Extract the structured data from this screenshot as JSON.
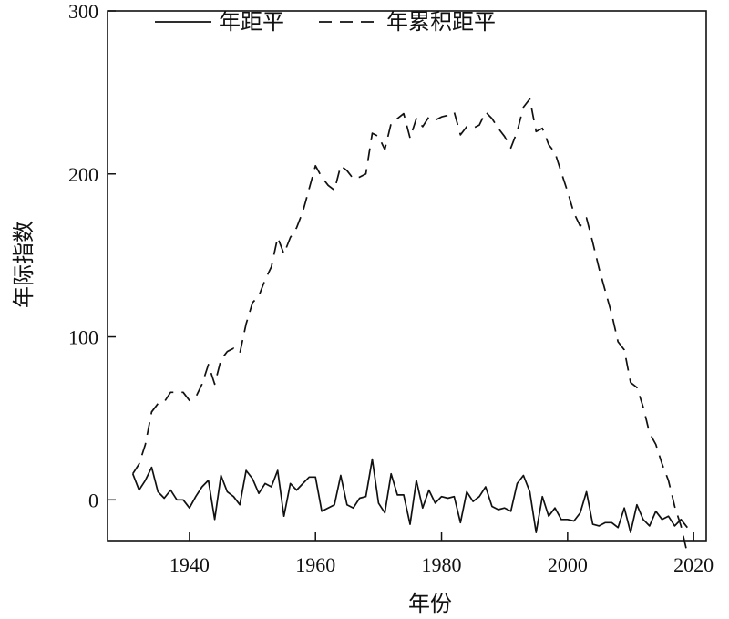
{
  "chart_data": {
    "type": "line",
    "title": "",
    "xlabel": "年份",
    "ylabel": "年际指数",
    "xlim": [
      1931,
      2019
    ],
    "ylim": [
      -25,
      300
    ],
    "xticks": [
      "1940",
      "1960",
      "1980",
      "2000",
      "2020"
    ],
    "yticks": [
      "0",
      "100",
      "200",
      "300"
    ],
    "legend_position": "top",
    "grid": false,
    "series": [
      {
        "name": "年距平",
        "style": "solid",
        "x": [
          1931,
          1932,
          1933,
          1934,
          1935,
          1936,
          1937,
          1938,
          1939,
          1940,
          1941,
          1942,
          1943,
          1944,
          1945,
          1946,
          1947,
          1948,
          1949,
          1950,
          1951,
          1952,
          1953,
          1954,
          1955,
          1956,
          1957,
          1958,
          1959,
          1960,
          1961,
          1962,
          1963,
          1964,
          1965,
          1966,
          1967,
          1968,
          1969,
          1970,
          1971,
          1972,
          1973,
          1974,
          1975,
          1976,
          1977,
          1978,
          1979,
          1980,
          1981,
          1982,
          1983,
          1984,
          1985,
          1986,
          1987,
          1988,
          1989,
          1990,
          1991,
          1992,
          1993,
          1994,
          1995,
          1996,
          1997,
          1998,
          1999,
          2000,
          2001,
          2002,
          2003,
          2004,
          2005,
          2006,
          2007,
          2008,
          2009,
          2010,
          2011,
          2012,
          2013,
          2014,
          2015,
          2016,
          2017,
          2018,
          2019
        ],
        "values": [
          16,
          6,
          12,
          20,
          5,
          1,
          6,
          0,
          0,
          -5,
          2,
          8,
          12,
          -12,
          15,
          5,
          2,
          -3,
          18,
          13,
          4,
          10,
          8,
          18,
          -10,
          10,
          6,
          10,
          14,
          14,
          -7,
          -5,
          -3,
          15,
          -3,
          -5,
          1,
          2,
          25,
          -2,
          -8,
          16,
          3,
          3,
          -15,
          12,
          -5,
          6,
          -2,
          2,
          1,
          2,
          -14,
          5,
          -1,
          2,
          8,
          -4,
          -6,
          -5,
          -7,
          10,
          15,
          5,
          -20,
          2,
          -10,
          -5,
          -12,
          -12,
          -13,
          -8,
          5,
          -15,
          -16,
          -14,
          -14,
          -17,
          -5,
          -20,
          -3,
          -12,
          -16,
          -7,
          -12,
          -10,
          -16,
          -12,
          -17
        ]
      },
      {
        "name": "年累积距平",
        "style": "dashed",
        "x": [
          1931,
          1932,
          1933,
          1934,
          1935,
          1936,
          1937,
          1938,
          1939,
          1940,
          1941,
          1942,
          1943,
          1944,
          1945,
          1946,
          1947,
          1948,
          1949,
          1950,
          1951,
          1952,
          1953,
          1954,
          1955,
          1956,
          1957,
          1958,
          1959,
          1960,
          1961,
          1962,
          1963,
          1964,
          1965,
          1966,
          1967,
          1968,
          1969,
          1970,
          1971,
          1972,
          1973,
          1974,
          1975,
          1976,
          1977,
          1978,
          1979,
          1980,
          1981,
          1982,
          1983,
          1984,
          1985,
          1986,
          1987,
          1988,
          1989,
          1990,
          1991,
          1992,
          1993,
          1994,
          1995,
          1996,
          1997,
          1998,
          1999,
          2000,
          2001,
          2002,
          2003,
          2004,
          2005,
          2006,
          2007,
          2008,
          2009,
          2010,
          2011,
          2012,
          2013,
          2014,
          2015,
          2016,
          2017,
          2018,
          2019
        ],
        "values": [
          16,
          22,
          34,
          54,
          59,
          60,
          66,
          66,
          66,
          61,
          63,
          71,
          83,
          71,
          86,
          91,
          93,
          90,
          108,
          121,
          125,
          135,
          143,
          161,
          151,
          161,
          167,
          177,
          191,
          205,
          198,
          193,
          190,
          205,
          202,
          197,
          198,
          200,
          225,
          223,
          215,
          231,
          234,
          237,
          222,
          234,
          229,
          235,
          233,
          235,
          236,
          238,
          224,
          229,
          228,
          230,
          238,
          234,
          228,
          223,
          216,
          226,
          241,
          246,
          226,
          228,
          218,
          213,
          201,
          189,
          176,
          168,
          173,
          158,
          142,
          128,
          114,
          97,
          92,
          72,
          69,
          57,
          41,
          34,
          22,
          12,
          -4,
          -16,
          -33
        ]
      }
    ]
  }
}
